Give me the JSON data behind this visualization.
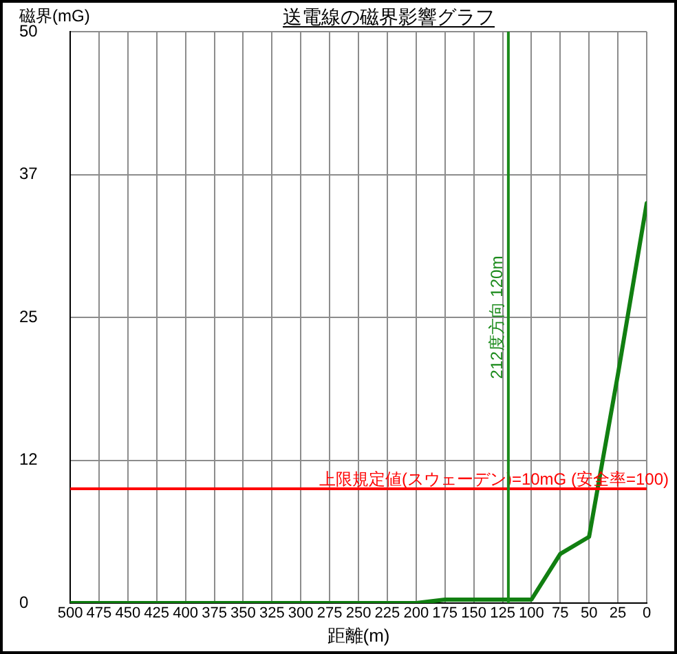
{
  "chart_data": {
    "type": "line",
    "title": "送電線の磁界影響グラフ",
    "xlabel": "距離(m)",
    "ylabel": "磁界(mG)",
    "x": [
      500,
      200,
      175,
      100,
      75,
      50,
      25,
      0
    ],
    "series": [
      {
        "color": "#117f11",
        "values": [
          0,
          0,
          0.3,
          0.3,
          4.3,
          5.8,
          20,
          35
        ]
      }
    ],
    "xlim": [
      500,
      0
    ],
    "xticks": [
      500,
      475,
      450,
      425,
      400,
      375,
      350,
      325,
      300,
      275,
      250,
      225,
      200,
      175,
      150,
      125,
      100,
      75,
      50,
      25,
      0
    ],
    "ylim": [
      0,
      50
    ],
    "yticks": [
      0,
      {
        "value": 12.5,
        "label": "12"
      },
      25,
      {
        "value": 37.5,
        "label": "37"
      },
      50
    ],
    "ref_lines": [
      {
        "axis": "y",
        "value": 10,
        "label": "上限規定値(スウェーデン)=10mG (安全率=100)",
        "color": "#ff0000"
      },
      {
        "axis": "x",
        "value": 120,
        "label": "212度方向 120m",
        "color": "#1a8a1a"
      }
    ],
    "grid": true,
    "marker": "none",
    "line_style": "solid"
  }
}
